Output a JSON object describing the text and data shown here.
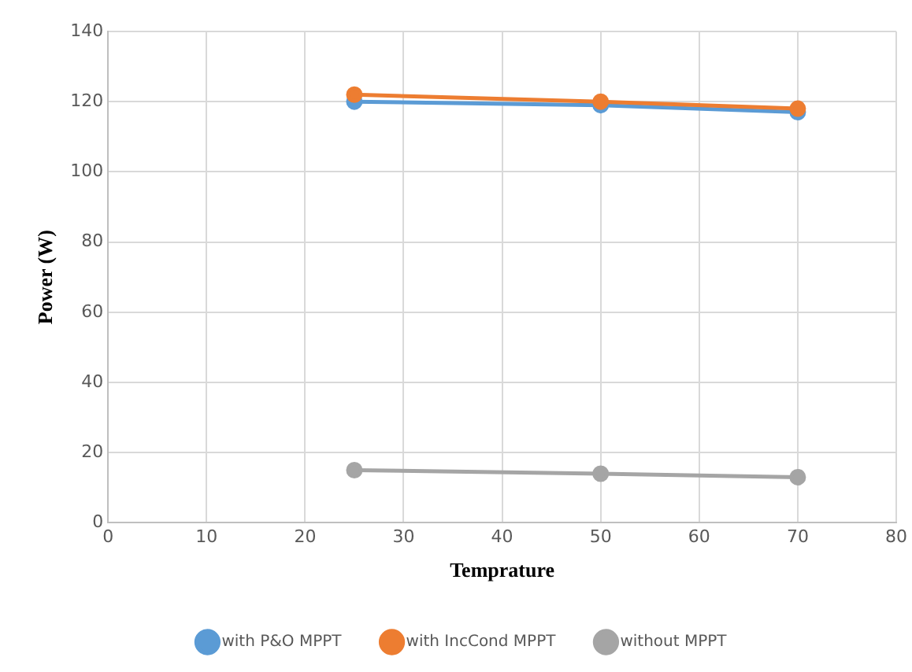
{
  "chart_data": {
    "type": "line",
    "xlabel": "Temprature",
    "ylabel": "Power (W)",
    "x": [
      25,
      50,
      70
    ],
    "series": [
      {
        "name": "with P&O MPPT",
        "color": "#5b9bd5",
        "values": [
          120,
          119,
          117
        ]
      },
      {
        "name": "with IncCond MPPT",
        "color": "#ed7d31",
        "values": [
          122,
          120,
          118
        ]
      },
      {
        "name": "without MPPT",
        "color": "#a5a5a5",
        "values": [
          15,
          14,
          13
        ]
      }
    ],
    "xlim": [
      0,
      80
    ],
    "xticks": [
      0,
      10,
      20,
      30,
      40,
      50,
      60,
      70,
      80
    ],
    "ylim": [
      0,
      140
    ],
    "yticks": [
      0,
      20,
      40,
      60,
      80,
      100,
      120,
      140
    ],
    "grid": true,
    "legend": "bottom",
    "marker": "circle",
    "line_style": "solid"
  }
}
